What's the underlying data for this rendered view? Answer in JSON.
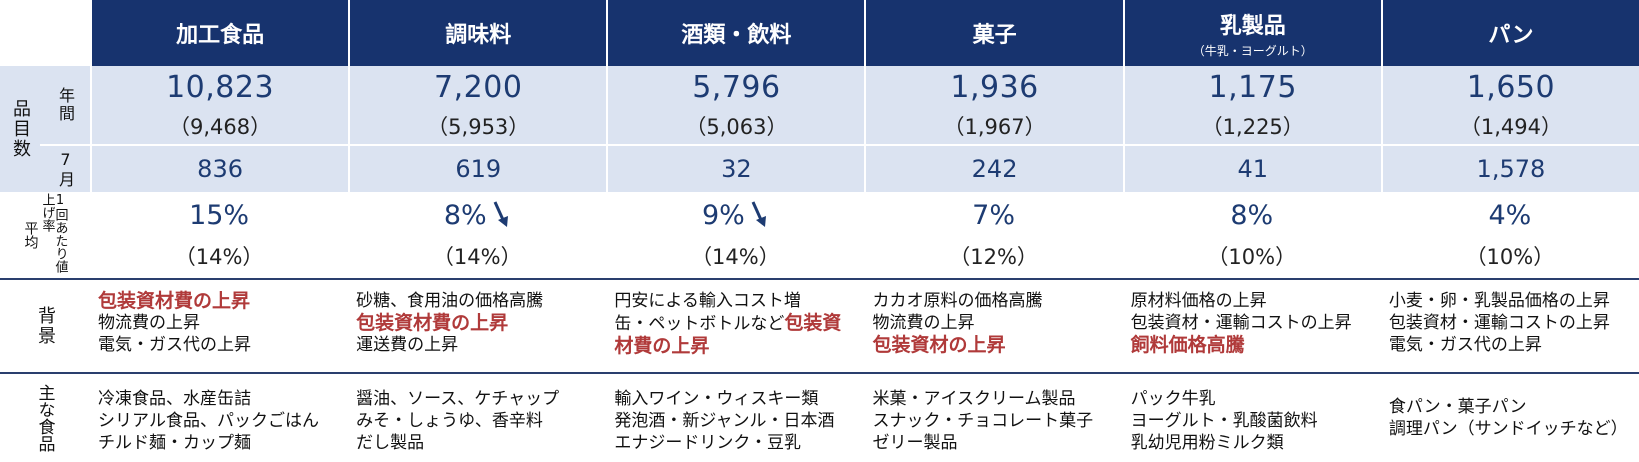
{
  "columns": [
    {
      "name": "加工食品",
      "sub": "",
      "annual": "10,823",
      "annual_prev": "（9,468）",
      "july": "836",
      "rate": "15%",
      "rate_prev": "（14%）",
      "arrow": false,
      "background": [
        {
          "text": "包装資材費の上昇",
          "highlight": true
        },
        {
          "text": "物流費の上昇",
          "highlight": false
        },
        {
          "text": "電気・ガス代の上昇",
          "highlight": false
        }
      ],
      "foods": [
        "冷凍食品、水産缶詰",
        "シリアル食品、パックごはん",
        "チルド麺・カップ麺"
      ]
    },
    {
      "name": "調味料",
      "sub": "",
      "annual": "7,200",
      "annual_prev": "（5,953）",
      "july": "619",
      "rate": "8%",
      "rate_prev": "（14%）",
      "arrow": true,
      "background": [
        {
          "text": "砂糖、食用油の価格高騰",
          "highlight": false
        },
        {
          "text": "包装資材費の上昇",
          "highlight": true
        },
        {
          "text": "運送費の上昇",
          "highlight": false
        }
      ],
      "foods": [
        "醤油、ソース、ケチャップ",
        "みそ・しょうゆ、香辛料",
        "だし製品"
      ]
    },
    {
      "name": "酒類・飲料",
      "sub": "",
      "annual": "5,796",
      "annual_prev": "（5,063）",
      "july": "32",
      "rate": "9%",
      "rate_prev": "（14%）",
      "arrow": true,
      "background_html_parts": [
        {
          "text": "円安による輸入コスト増",
          "highlight": false
        },
        {
          "text": "缶・ペットボトルなど",
          "highlight": false
        },
        {
          "text": "包装資材費の上昇",
          "highlight": true
        }
      ],
      "foods": [
        "輸入ワイン・ウィスキー類",
        "発泡酒・新ジャンル・日本酒",
        "エナジードリンク・豆乳"
      ]
    },
    {
      "name": "菓子",
      "sub": "",
      "annual": "1,936",
      "annual_prev": "（1,967）",
      "july": "242",
      "rate": "7%",
      "rate_prev": "（12%）",
      "arrow": false,
      "background": [
        {
          "text": "カカオ原料の価格高騰",
          "highlight": false
        },
        {
          "text": "物流費の上昇",
          "highlight": false
        },
        {
          "text": "包装資材の上昇",
          "highlight": true
        }
      ],
      "foods": [
        "米菓・アイスクリーム製品",
        "スナック・チョコレート菓子",
        "ゼリー製品"
      ]
    },
    {
      "name": "乳製品",
      "sub": "（牛乳・ヨーグルト）",
      "annual": "1,175",
      "annual_prev": "（1,225）",
      "july": "41",
      "rate": "8%",
      "rate_prev": "（10%）",
      "arrow": false,
      "background": [
        {
          "text": "原材料価格の上昇",
          "highlight": false
        },
        {
          "text": "包装資材・運輸コストの上昇",
          "highlight": false
        },
        {
          "text": "飼料価格高騰",
          "highlight": true
        }
      ],
      "foods": [
        "パック牛乳",
        "ヨーグルト・乳酸菌飲料",
        "乳幼児用粉ミルク類"
      ]
    },
    {
      "name": "パン",
      "sub": "",
      "annual": "1,650",
      "annual_prev": "（1,494）",
      "july": "1,578",
      "rate": "4%",
      "rate_prev": "（10%）",
      "arrow": false,
      "background": [
        {
          "text": "小麦・卵・乳製品価格の上昇",
          "highlight": false
        },
        {
          "text": "包装資材・運輸コストの上昇",
          "highlight": false
        },
        {
          "text": "電気・ガス代の上昇",
          "highlight": false
        }
      ],
      "foods": [
        "食パン・菓子パン",
        "調理パン（サンドイッチなど）"
      ]
    }
  ],
  "side_labels": {
    "count": "品目数",
    "annual": "年間",
    "july": "7月",
    "rate_main": "平均",
    "rate_detail": "1回あたり値上げ率",
    "background": "背景",
    "foods": "主な食品"
  },
  "colors": {
    "header_bg": "#17336e",
    "band_bg": "#dbe3f1",
    "highlight": "#b03a3a",
    "number": "#1d3b72"
  },
  "icons": {
    "arrow": "down-right-arrow-icon"
  }
}
